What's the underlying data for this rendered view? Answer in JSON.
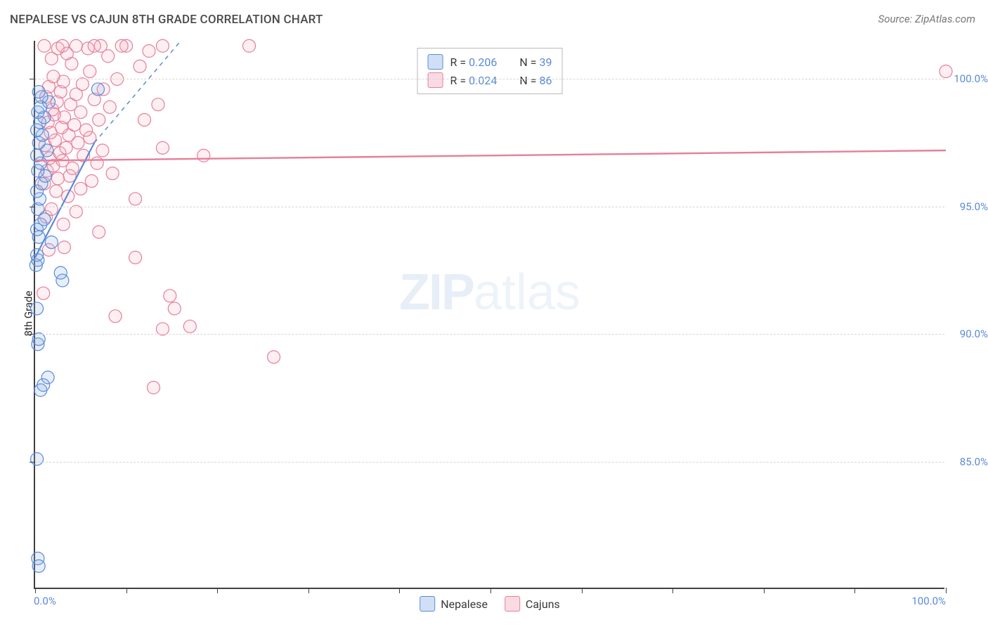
{
  "title": "NEPALESE VS CAJUN 8TH GRADE CORRELATION CHART",
  "source": "Source: ZipAtlas.com",
  "y_axis_label": "8th Grade",
  "watermark": {
    "zip": "ZIP",
    "atlas": "atlas"
  },
  "chart": {
    "type": "scatter",
    "background_color": "#ffffff",
    "grid_color": "#d6d6d6",
    "axis_color": "#404040",
    "tick_label_color": "#5b8ad6",
    "xlim": [
      0,
      100
    ],
    "ylim": [
      80,
      101.5
    ],
    "x_ticks": [
      0,
      10,
      20,
      30,
      40,
      50,
      60,
      70,
      80,
      90,
      100
    ],
    "x_tick_labels": {
      "0": "0.0%",
      "100": "100.0%"
    },
    "y_ticks": [
      85,
      90,
      95,
      100
    ],
    "y_tick_labels": {
      "85": "85.0%",
      "90": "90.0%",
      "95": "95.0%",
      "100": "100.0%"
    },
    "marker_radius": 9,
    "marker_stroke_width": 1.2,
    "marker_fill_opacity": 0.22,
    "series": [
      {
        "name": "Nepalese",
        "color_stroke": "#5b8ad6",
        "color_fill": "#8db0e6",
        "trend": {
          "x1": 0,
          "y1": 93.0,
          "x2": 6.5,
          "y2": 97.5,
          "width": 2.2,
          "dash_from_x": 6.5,
          "dash_to_x": 16,
          "dash_to_y": 101.5
        },
        "points": [
          [
            0.3,
            81.2
          ],
          [
            0.4,
            80.9
          ],
          [
            0.2,
            85.1
          ],
          [
            0.6,
            87.8
          ],
          [
            0.9,
            88.0
          ],
          [
            1.4,
            88.3
          ],
          [
            0.3,
            89.6
          ],
          [
            0.4,
            89.8
          ],
          [
            0.2,
            91.0
          ],
          [
            3.0,
            92.1
          ],
          [
            2.8,
            92.4
          ],
          [
            0.1,
            92.7
          ],
          [
            0.3,
            92.9
          ],
          [
            0.2,
            93.1
          ],
          [
            1.8,
            93.6
          ],
          [
            0.4,
            93.8
          ],
          [
            0.2,
            94.1
          ],
          [
            0.6,
            94.3
          ],
          [
            1.0,
            94.5
          ],
          [
            0.3,
            94.9
          ],
          [
            0.5,
            95.3
          ],
          [
            0.2,
            95.6
          ],
          [
            0.7,
            95.9
          ],
          [
            1.1,
            96.2
          ],
          [
            0.3,
            96.4
          ],
          [
            0.6,
            96.7
          ],
          [
            0.2,
            97.0
          ],
          [
            1.3,
            97.2
          ],
          [
            0.4,
            97.5
          ],
          [
            0.8,
            97.8
          ],
          [
            0.2,
            98.0
          ],
          [
            0.5,
            98.3
          ],
          [
            1.0,
            98.5
          ],
          [
            0.3,
            98.7
          ],
          [
            0.6,
            98.9
          ],
          [
            1.5,
            99.1
          ],
          [
            0.7,
            99.3
          ],
          [
            0.4,
            99.5
          ],
          [
            6.9,
            99.6
          ]
        ]
      },
      {
        "name": "Cajuns",
        "color_stroke": "#e57f9a",
        "color_fill": "#f4b6c6",
        "trend": {
          "x1": 0,
          "y1": 96.8,
          "x2": 100,
          "y2": 97.2,
          "width": 2.4
        },
        "points": [
          [
            13.0,
            87.9
          ],
          [
            26.2,
            89.1
          ],
          [
            14.0,
            90.2
          ],
          [
            17.0,
            90.3
          ],
          [
            8.8,
            90.7
          ],
          [
            15.3,
            91.0
          ],
          [
            14.8,
            91.5
          ],
          [
            0.9,
            91.6
          ],
          [
            11.0,
            93.0
          ],
          [
            1.5,
            93.3
          ],
          [
            3.2,
            93.4
          ],
          [
            7.0,
            94.0
          ],
          [
            3.1,
            94.3
          ],
          [
            1.2,
            94.6
          ],
          [
            4.5,
            94.8
          ],
          [
            1.8,
            94.9
          ],
          [
            11.0,
            95.3
          ],
          [
            3.6,
            95.4
          ],
          [
            2.3,
            95.6
          ],
          [
            5.0,
            95.7
          ],
          [
            1.0,
            95.9
          ],
          [
            6.2,
            96.0
          ],
          [
            2.5,
            96.1
          ],
          [
            3.8,
            96.2
          ],
          [
            8.5,
            96.3
          ],
          [
            1.3,
            96.4
          ],
          [
            4.1,
            96.5
          ],
          [
            2.0,
            96.6
          ],
          [
            6.8,
            96.7
          ],
          [
            3.0,
            96.8
          ],
          [
            1.6,
            96.9
          ],
          [
            5.3,
            97.0
          ],
          [
            2.7,
            97.1
          ],
          [
            18.5,
            97.0
          ],
          [
            7.4,
            97.2
          ],
          [
            3.4,
            97.3
          ],
          [
            1.1,
            97.4
          ],
          [
            4.7,
            97.5
          ],
          [
            2.2,
            97.6
          ],
          [
            6.0,
            97.7
          ],
          [
            14.0,
            97.3
          ],
          [
            3.7,
            97.8
          ],
          [
            1.7,
            97.9
          ],
          [
            5.6,
            98.0
          ],
          [
            2.9,
            98.1
          ],
          [
            4.3,
            98.2
          ],
          [
            1.4,
            98.3
          ],
          [
            7.0,
            98.4
          ],
          [
            3.2,
            98.5
          ],
          [
            12.0,
            98.4
          ],
          [
            2.1,
            98.6
          ],
          [
            5.0,
            98.7
          ],
          [
            1.9,
            98.8
          ],
          [
            8.2,
            98.9
          ],
          [
            3.9,
            99.0
          ],
          [
            2.4,
            99.1
          ],
          [
            6.5,
            99.2
          ],
          [
            1.2,
            99.3
          ],
          [
            13.5,
            99.0
          ],
          [
            4.5,
            99.4
          ],
          [
            2.8,
            99.5
          ],
          [
            7.5,
            99.6
          ],
          [
            1.5,
            99.7
          ],
          [
            5.2,
            99.8
          ],
          [
            3.1,
            99.9
          ],
          [
            9.0,
            100.0
          ],
          [
            2.0,
            100.1
          ],
          [
            11.5,
            100.5
          ],
          [
            6.0,
            100.3
          ],
          [
            4.0,
            100.6
          ],
          [
            1.8,
            100.8
          ],
          [
            8.0,
            100.9
          ],
          [
            3.5,
            101.0
          ],
          [
            12.5,
            101.1
          ],
          [
            5.8,
            101.2
          ],
          [
            2.5,
            101.2
          ],
          [
            10.0,
            101.3
          ],
          [
            7.2,
            101.3
          ],
          [
            4.5,
            101.3
          ],
          [
            14.0,
            101.3
          ],
          [
            1.0,
            101.3
          ],
          [
            9.5,
            101.3
          ],
          [
            6.5,
            101.3
          ],
          [
            23.5,
            101.3
          ],
          [
            3.0,
            101.3
          ],
          [
            100.0,
            100.3
          ]
        ]
      }
    ]
  },
  "legend_top": {
    "rows": [
      {
        "swatch_fill": "#cfe0f6",
        "swatch_stroke": "#5b8ad6",
        "r_label": "R = ",
        "r_val": "0.206",
        "n_label": "N = ",
        "n_val": "39"
      },
      {
        "swatch_fill": "#fadbe4",
        "swatch_stroke": "#e57f9a",
        "r_label": "R = ",
        "r_val": "0.024",
        "n_label": "N = ",
        "n_val": "86"
      }
    ]
  },
  "legend_bottom": {
    "items": [
      {
        "swatch_fill": "#cfe0f6",
        "swatch_stroke": "#5b8ad6",
        "label": "Nepalese"
      },
      {
        "swatch_fill": "#fadbe4",
        "swatch_stroke": "#e57f9a",
        "label": "Cajuns"
      }
    ]
  }
}
